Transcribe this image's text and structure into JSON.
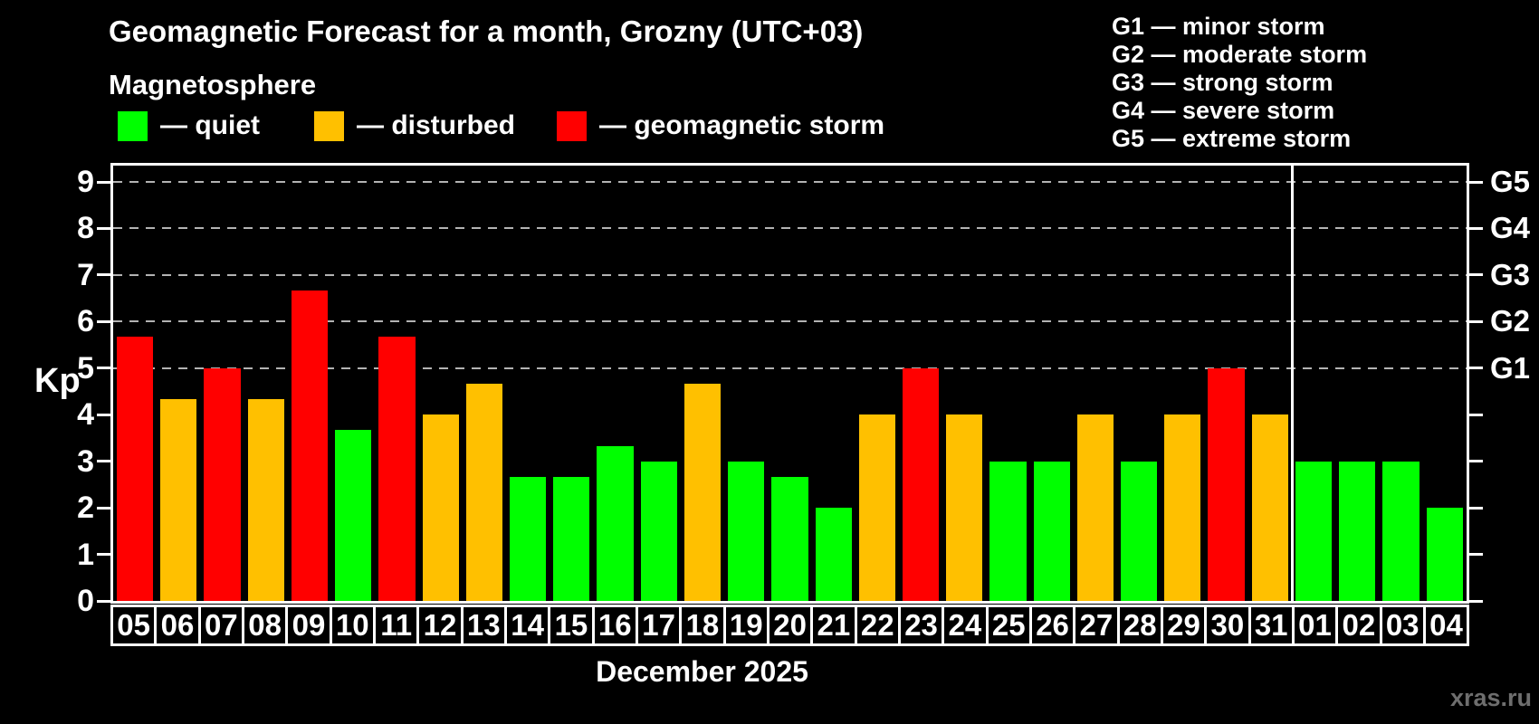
{
  "title": "Geomagnetic Forecast for a month, Grozny (UTC+03)",
  "subtitle": "Magnetosphere",
  "watermark": "xras.ru",
  "colors": {
    "quiet": "#00ff00",
    "disturbed": "#ffc000",
    "storm": "#ff0000",
    "grid": "#b3b3b3",
    "frame": "#ffffff",
    "text": "#ffffff",
    "watermark": "#6e6e6e"
  },
  "legend": {
    "items": [
      {
        "label": "— quiet",
        "status": "quiet",
        "x": 0
      },
      {
        "label": "— disturbed",
        "status": "disturbed",
        "x": 217
      },
      {
        "label": "— geomagnetic storm",
        "status": "storm",
        "x": 485
      }
    ]
  },
  "g_legend": {
    "lines": [
      "G1 — minor storm",
      "G2 — moderate storm",
      "G3 — strong storm",
      "G4 — severe storm",
      "G5 — extreme storm"
    ]
  },
  "y_axis": {
    "label": "Kp",
    "ticks": [
      0,
      1,
      2,
      3,
      4,
      5,
      6,
      7,
      8,
      9
    ]
  },
  "right_axis": {
    "labels": [
      {
        "text": "G1",
        "kp": 5
      },
      {
        "text": "G2",
        "kp": 6
      },
      {
        "text": "G3",
        "kp": 7
      },
      {
        "text": "G4",
        "kp": 8
      },
      {
        "text": "G5",
        "kp": 9
      }
    ]
  },
  "chart_data": {
    "type": "bar",
    "title": "Geomagnetic Forecast for a month, Grozny (UTC+03)",
    "xlabel": "",
    "ylabel": "Kp",
    "ylim": [
      0,
      9.35
    ],
    "grid": "horizontal dashed lines at Kp 5,6,7,8,9 (G1–G5)",
    "legend_position": "top-left",
    "month_label": "December 2025",
    "separator_after_index": 26,
    "categories": [
      "05",
      "06",
      "07",
      "08",
      "09",
      "10",
      "11",
      "12",
      "13",
      "14",
      "15",
      "16",
      "17",
      "18",
      "19",
      "20",
      "21",
      "22",
      "23",
      "24",
      "25",
      "26",
      "27",
      "28",
      "29",
      "30",
      "31",
      "01",
      "02",
      "03",
      "04"
    ],
    "values": [
      5.67,
      4.33,
      5.0,
      4.33,
      6.67,
      3.67,
      5.67,
      4.0,
      4.67,
      2.67,
      2.67,
      3.33,
      3.0,
      4.67,
      3.0,
      2.67,
      2.0,
      4.0,
      5.0,
      4.0,
      3.0,
      3.0,
      4.0,
      3.0,
      4.0,
      5.0,
      4.0,
      3.0,
      3.0,
      3.0,
      2.0
    ],
    "statuses": [
      "storm",
      "disturbed",
      "storm",
      "disturbed",
      "storm",
      "quiet",
      "storm",
      "disturbed",
      "disturbed",
      "quiet",
      "quiet",
      "quiet",
      "quiet",
      "disturbed",
      "quiet",
      "quiet",
      "quiet",
      "disturbed",
      "storm",
      "disturbed",
      "quiet",
      "quiet",
      "disturbed",
      "quiet",
      "disturbed",
      "storm",
      "disturbed",
      "quiet",
      "quiet",
      "quiet",
      "quiet"
    ]
  }
}
